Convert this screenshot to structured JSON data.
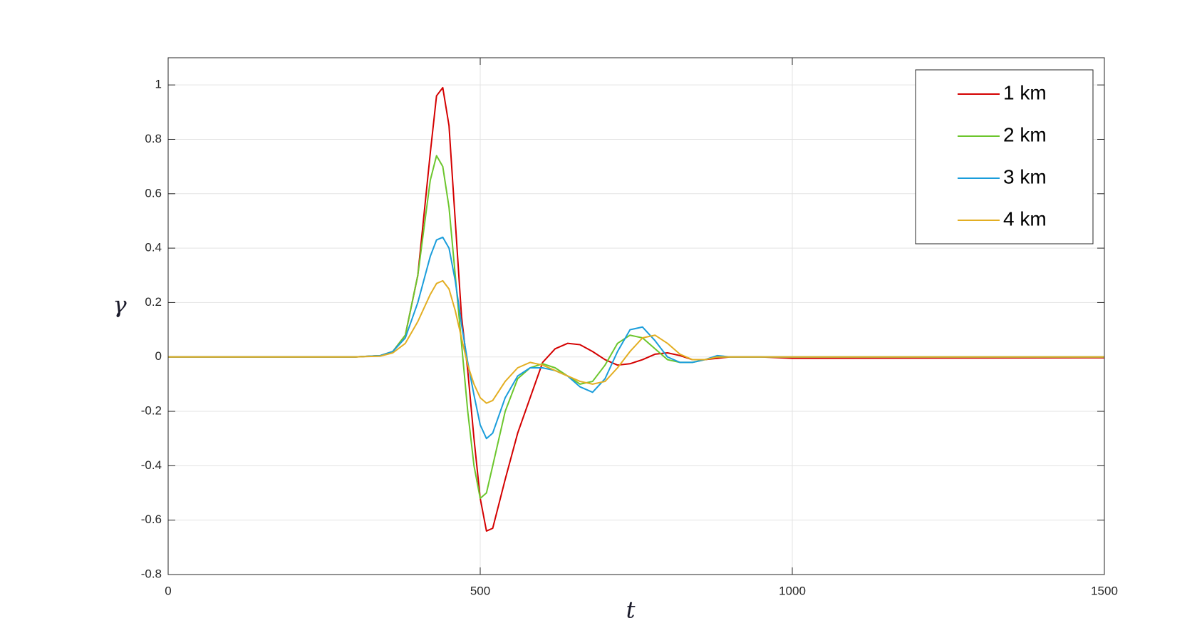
{
  "chart_data": {
    "type": "line",
    "xlabel": "t",
    "ylabel": "γ",
    "x": [
      0,
      300,
      340,
      360,
      380,
      400,
      420,
      430,
      440,
      450,
      460,
      470,
      480,
      490,
      500,
      510,
      520,
      540,
      560,
      580,
      600,
      620,
      640,
      660,
      680,
      700,
      720,
      740,
      760,
      780,
      800,
      820,
      840,
      860,
      880,
      900,
      950,
      1000,
      1500
    ],
    "series": [
      {
        "name": "1 km",
        "color": "#d40000",
        "values": [
          0,
          0,
          0.005,
          0.02,
          0.08,
          0.3,
          0.75,
          0.96,
          0.99,
          0.85,
          0.5,
          0.15,
          -0.05,
          -0.3,
          -0.52,
          -0.64,
          -0.63,
          -0.45,
          -0.28,
          -0.15,
          -0.02,
          0.03,
          0.05,
          0.045,
          0.02,
          -0.01,
          -0.03,
          -0.025,
          -0.01,
          0.01,
          0.015,
          0.005,
          -0.01,
          -0.01,
          -0.005,
          0,
          0,
          -0.005,
          -0.003
        ]
      },
      {
        "name": "2 km",
        "color": "#6cc62d",
        "values": [
          0,
          0,
          0.005,
          0.02,
          0.08,
          0.3,
          0.65,
          0.74,
          0.7,
          0.55,
          0.3,
          0.05,
          -0.2,
          -0.4,
          -0.52,
          -0.5,
          -0.4,
          -0.2,
          -0.08,
          -0.04,
          -0.025,
          -0.04,
          -0.07,
          -0.1,
          -0.09,
          -0.03,
          0.05,
          0.08,
          0.07,
          0.03,
          -0.01,
          -0.02,
          -0.02,
          -0.01,
          0,
          0,
          0,
          0,
          0
        ]
      },
      {
        "name": "3 km",
        "color": "#1a9ddb",
        "values": [
          0,
          0,
          0.005,
          0.02,
          0.07,
          0.2,
          0.37,
          0.43,
          0.44,
          0.4,
          0.28,
          0.12,
          -0.02,
          -0.14,
          -0.25,
          -0.3,
          -0.28,
          -0.15,
          -0.07,
          -0.04,
          -0.04,
          -0.05,
          -0.07,
          -0.11,
          -0.13,
          -0.08,
          0.02,
          0.1,
          0.11,
          0.06,
          0,
          -0.02,
          -0.02,
          -0.01,
          0.005,
          0,
          0,
          0,
          0
        ]
      },
      {
        "name": "4 km",
        "color": "#e3ae22",
        "values": [
          0,
          0,
          0.003,
          0.015,
          0.05,
          0.13,
          0.23,
          0.27,
          0.28,
          0.25,
          0.17,
          0.07,
          -0.03,
          -0.1,
          -0.15,
          -0.17,
          -0.16,
          -0.09,
          -0.04,
          -0.02,
          -0.03,
          -0.05,
          -0.07,
          -0.09,
          -0.1,
          -0.09,
          -0.04,
          0.02,
          0.07,
          0.08,
          0.05,
          0.01,
          -0.01,
          -0.01,
          0,
          0,
          0,
          0,
          0
        ]
      }
    ],
    "xlim": [
      0,
      1500
    ],
    "xticks": [
      0,
      500,
      1000,
      1500
    ],
    "ylim": [
      -0.8,
      1.1
    ],
    "yticks": [
      -0.8,
      -0.6,
      -0.4,
      -0.2,
      0,
      0.2,
      0.4,
      0.6,
      0.8,
      1
    ],
    "grid": true,
    "legend": "northeast"
  }
}
